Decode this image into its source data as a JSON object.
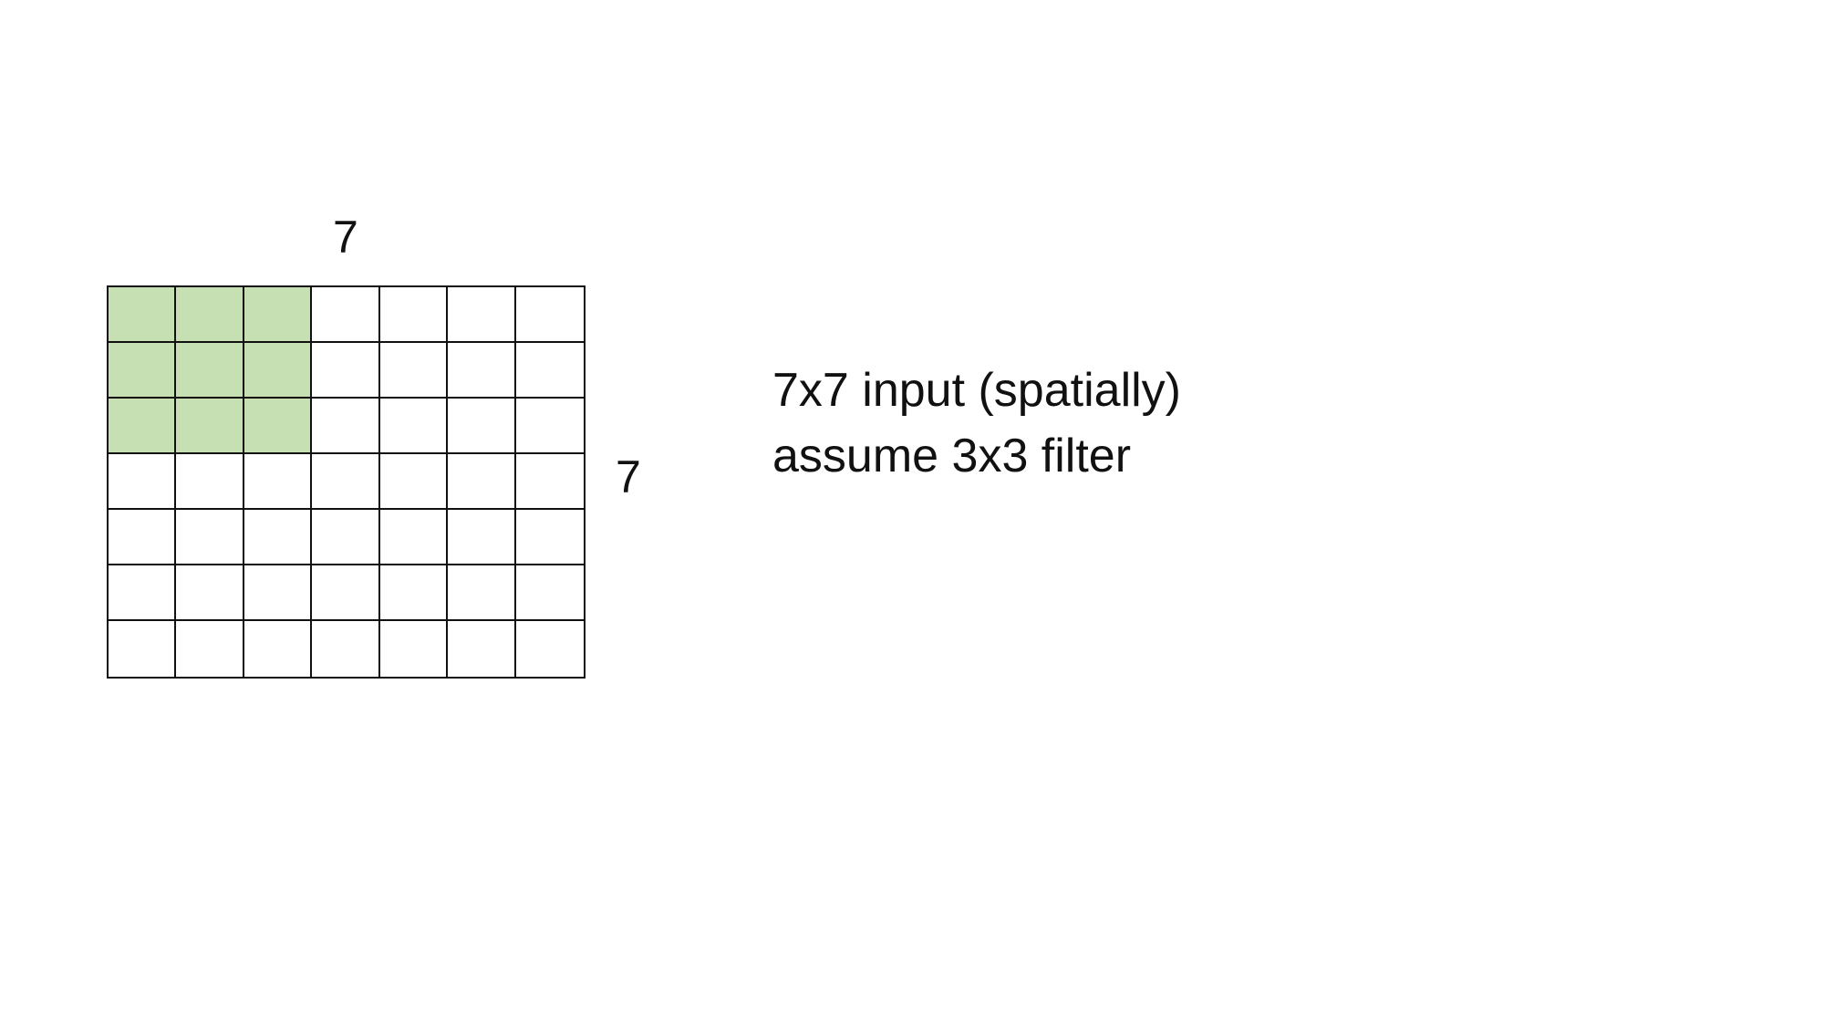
{
  "diagram": {
    "width_label": "7",
    "height_label": "7",
    "grid": {
      "rows": 7,
      "cols": 7,
      "filter_rows": 3,
      "filter_cols": 3,
      "filter_color": "#c6e0b4",
      "cell_color": "#ffffff",
      "line_color": "#111111"
    }
  },
  "caption": {
    "line1": "7x7 input (spatially)",
    "line2": "assume 3x3 filter"
  }
}
